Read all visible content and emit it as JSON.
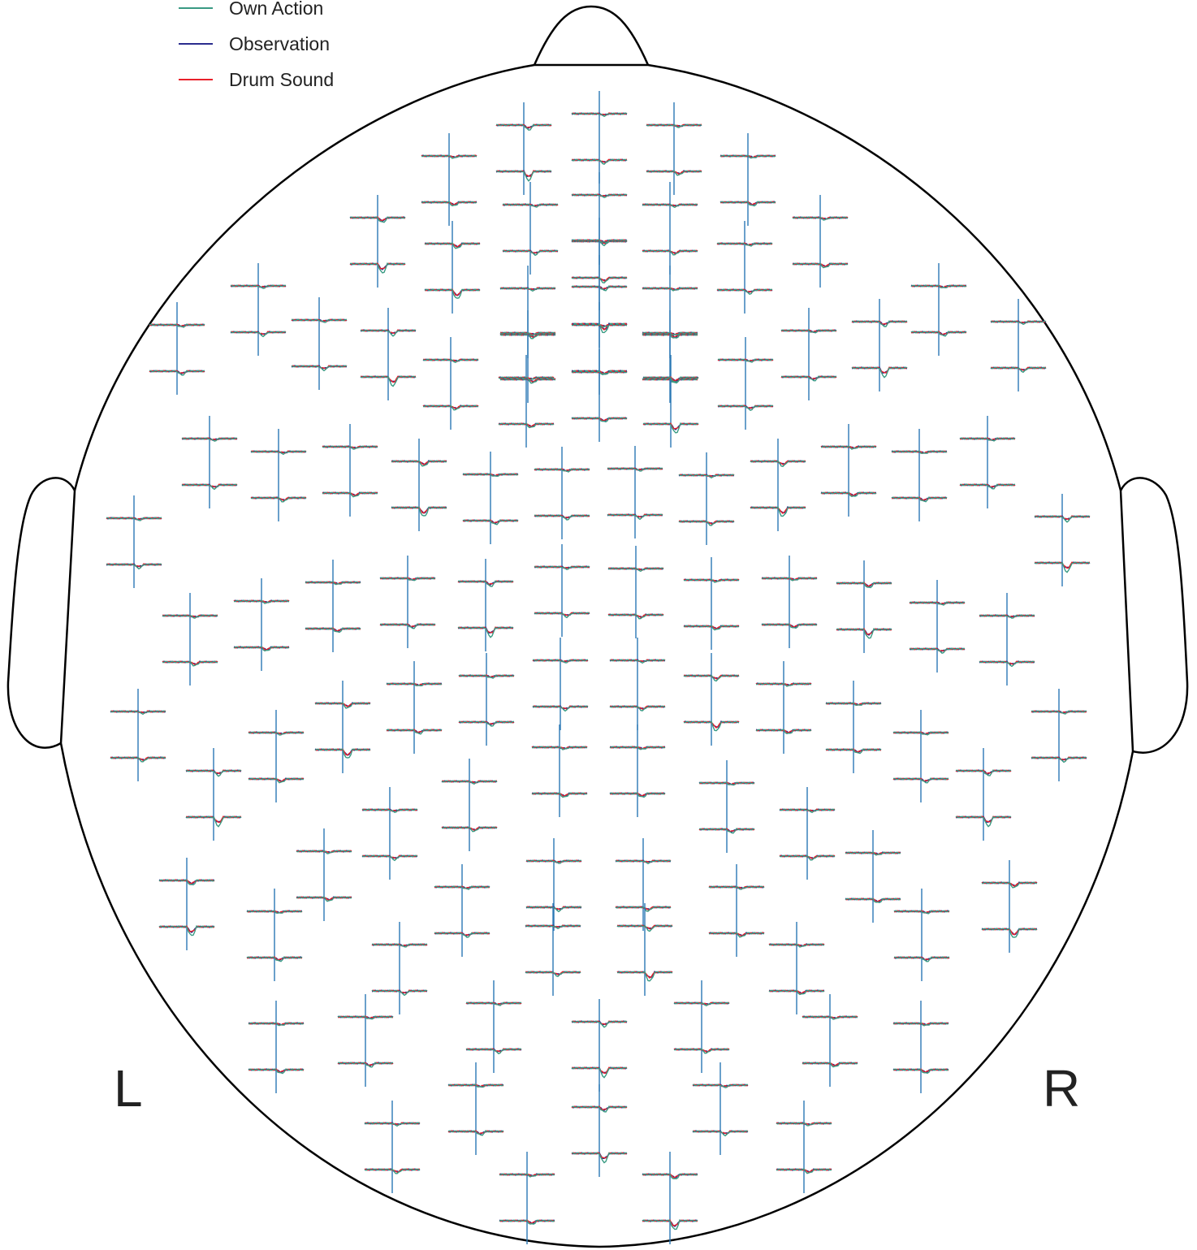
{
  "legend": [
    {
      "label": "Own Action",
      "color": "#3a9a83"
    },
    {
      "label": "Observation",
      "color": "#2b2d8e"
    },
    {
      "label": "Drum Sound",
      "color": "#e8202a"
    }
  ],
  "axis_color": "#2b78b5",
  "head_outline_color": "#000000",
  "side_labels": {
    "left": "L",
    "right": "R"
  }
}
